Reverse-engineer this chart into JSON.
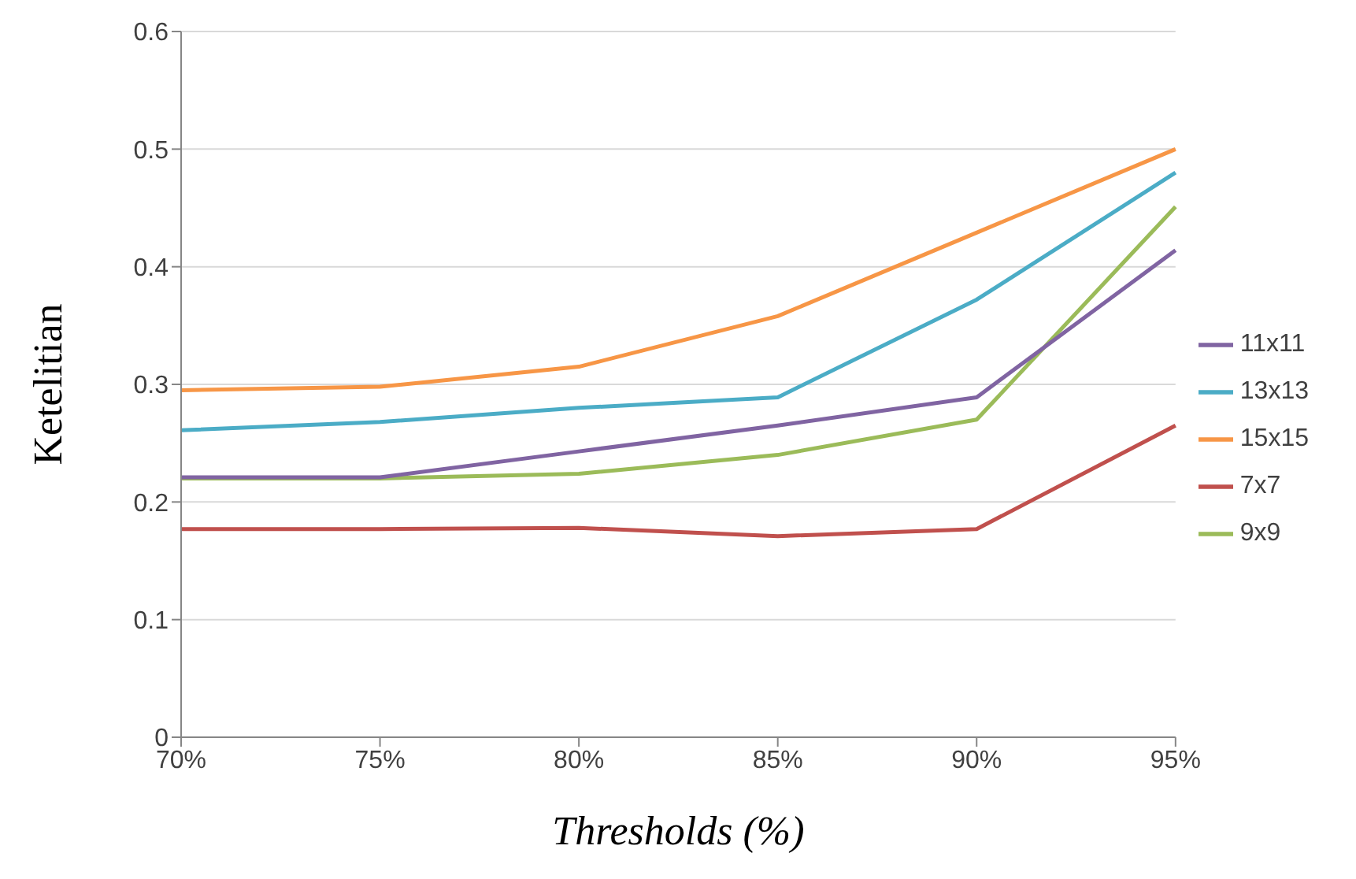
{
  "chart_data": {
    "type": "line",
    "xlabel": "Thresholds (%)",
    "ylabel": "Ketelitian",
    "categories": [
      "70%",
      "75%",
      "80%",
      "85%",
      "90%",
      "95%"
    ],
    "series": [
      {
        "name": "7x7",
        "color": "#c0504d",
        "values": [
          0.177,
          0.177,
          0.178,
          0.171,
          0.177,
          0.265
        ]
      },
      {
        "name": "9x9",
        "color": "#9bbb59",
        "values": [
          0.22,
          0.22,
          0.224,
          0.24,
          0.27,
          0.451
        ]
      },
      {
        "name": "11x11",
        "color": "#8064a2",
        "values": [
          0.221,
          0.221,
          0.243,
          0.265,
          0.289,
          0.414
        ]
      },
      {
        "name": "13x13",
        "color": "#4bacc6",
        "values": [
          0.261,
          0.268,
          0.28,
          0.289,
          0.372,
          0.48
        ]
      },
      {
        "name": "15x15",
        "color": "#f79646",
        "values": [
          0.295,
          0.298,
          0.315,
          0.358,
          0.429,
          0.5
        ]
      }
    ],
    "ylim": [
      0,
      0.6
    ],
    "yticks": [
      0,
      0.1,
      0.2,
      0.3,
      0.4,
      0.5,
      0.6
    ],
    "grid": "y",
    "legend": "right",
    "marker": "none",
    "line_style": "solid"
  }
}
